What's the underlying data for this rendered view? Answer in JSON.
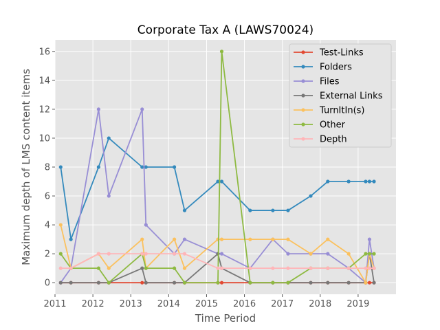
{
  "chart_data": {
    "type": "line",
    "title": "Corporate Tax A (LAWS70024)",
    "xlabel": "Time Period",
    "ylabel": "Maximum depth of LMS content items",
    "xlim": [
      2011,
      2020.0
    ],
    "ylim": [
      -0.8,
      16.8
    ],
    "xticks": [
      2011,
      2012,
      2013,
      2014,
      2015,
      2016,
      2017,
      2018,
      2019
    ],
    "yticks": [
      0,
      2,
      4,
      6,
      8,
      10,
      12,
      14,
      16
    ],
    "grid": true,
    "legend_position": "top-right",
    "series": [
      {
        "name": "Test-Links",
        "color": "#E24A33",
        "x": [
          2011.15,
          2011.42,
          2012.15,
          2012.42,
          2013.3,
          2013.4,
          2014.15,
          2014.42,
          2015.3,
          2015.4,
          2016.15,
          2016.75,
          2017.15,
          2017.75,
          2018.2,
          2018.75,
          2019.2,
          2019.3,
          2019.42
        ],
        "y": [
          0,
          0,
          0,
          0,
          0,
          0,
          0,
          0,
          0,
          0,
          0,
          0,
          0,
          0,
          0,
          0,
          0,
          0,
          0
        ]
      },
      {
        "name": "Folders",
        "color": "#348ABD",
        "x": [
          2011.15,
          2011.42,
          2012.15,
          2012.42,
          2013.3,
          2013.4,
          2014.15,
          2014.42,
          2015.3,
          2015.4,
          2016.15,
          2016.75,
          2017.15,
          2017.75,
          2018.2,
          2018.75,
          2019.2,
          2019.3,
          2019.42
        ],
        "y": [
          8,
          3,
          8,
          10,
          8,
          8,
          8,
          5,
          7,
          7,
          5,
          5,
          5,
          6,
          7,
          7,
          7,
          7,
          7
        ]
      },
      {
        "name": "Files",
        "color": "#988ED5",
        "x": [
          2011.15,
          2011.42,
          2012.15,
          2012.42,
          2013.3,
          2013.4,
          2014.15,
          2014.42,
          2015.3,
          2015.4,
          2016.15,
          2016.75,
          2017.15,
          2017.75,
          2018.2,
          2018.75,
          2019.2,
          2019.3,
          2019.42
        ],
        "y": [
          0,
          1,
          12,
          6,
          12,
          4,
          2,
          3,
          2,
          2,
          1,
          3,
          2,
          2,
          2,
          1,
          0,
          3,
          1
        ]
      },
      {
        "name": "External Links",
        "color": "#777777",
        "x": [
          2011.15,
          2011.42,
          2012.15,
          2012.42,
          2013.3,
          2013.4,
          2014.15,
          2014.42,
          2015.3,
          2015.4,
          2016.15,
          2016.75,
          2017.15,
          2017.75,
          2018.2,
          2018.75,
          2019.2,
          2019.3,
          2019.42
        ],
        "y": [
          0,
          0,
          0,
          0,
          1,
          0,
          0,
          0,
          2,
          1,
          0,
          0,
          0,
          0,
          0,
          0,
          0,
          2,
          0
        ]
      },
      {
        "name": "TurnItIn(s)",
        "color": "#FBC15E",
        "x": [
          2011.15,
          2011.42,
          2012.15,
          2012.42,
          2013.3,
          2013.4,
          2014.15,
          2014.42,
          2015.3,
          2015.4,
          2016.15,
          2016.75,
          2017.15,
          2017.75,
          2018.2,
          2018.75,
          2019.2,
          2019.3,
          2019.42
        ],
        "y": [
          4,
          1,
          2,
          1,
          3,
          1,
          3,
          1,
          3,
          3,
          3,
          3,
          3,
          2,
          3,
          2,
          0,
          2,
          1
        ]
      },
      {
        "name": "Other",
        "color": "#8EBA42",
        "x": [
          2011.15,
          2011.42,
          2012.15,
          2012.42,
          2013.3,
          2013.4,
          2014.15,
          2014.42,
          2015.3,
          2015.4,
          2016.15,
          2016.75,
          2017.15,
          2017.75,
          2018.2,
          2018.75,
          2019.2,
          2019.3,
          2019.42
        ],
        "y": [
          2,
          1,
          1,
          0,
          2,
          1,
          1,
          0,
          0,
          16,
          0,
          0,
          0,
          1,
          1,
          1,
          2,
          2,
          2
        ]
      },
      {
        "name": "Depth",
        "color": "#FFB5B8",
        "x": [
          2011.15,
          2011.42,
          2012.15,
          2012.42,
          2013.3,
          2013.4,
          2014.15,
          2014.42,
          2015.3,
          2015.4,
          2016.15,
          2016.75,
          2017.15,
          2017.75,
          2018.2,
          2018.75,
          2019.2,
          2019.3,
          2019.42
        ],
        "y": [
          1,
          1,
          2,
          2,
          2,
          2,
          2,
          2,
          1,
          1,
          1,
          1,
          1,
          1,
          1,
          1,
          1,
          1,
          1
        ]
      }
    ]
  }
}
